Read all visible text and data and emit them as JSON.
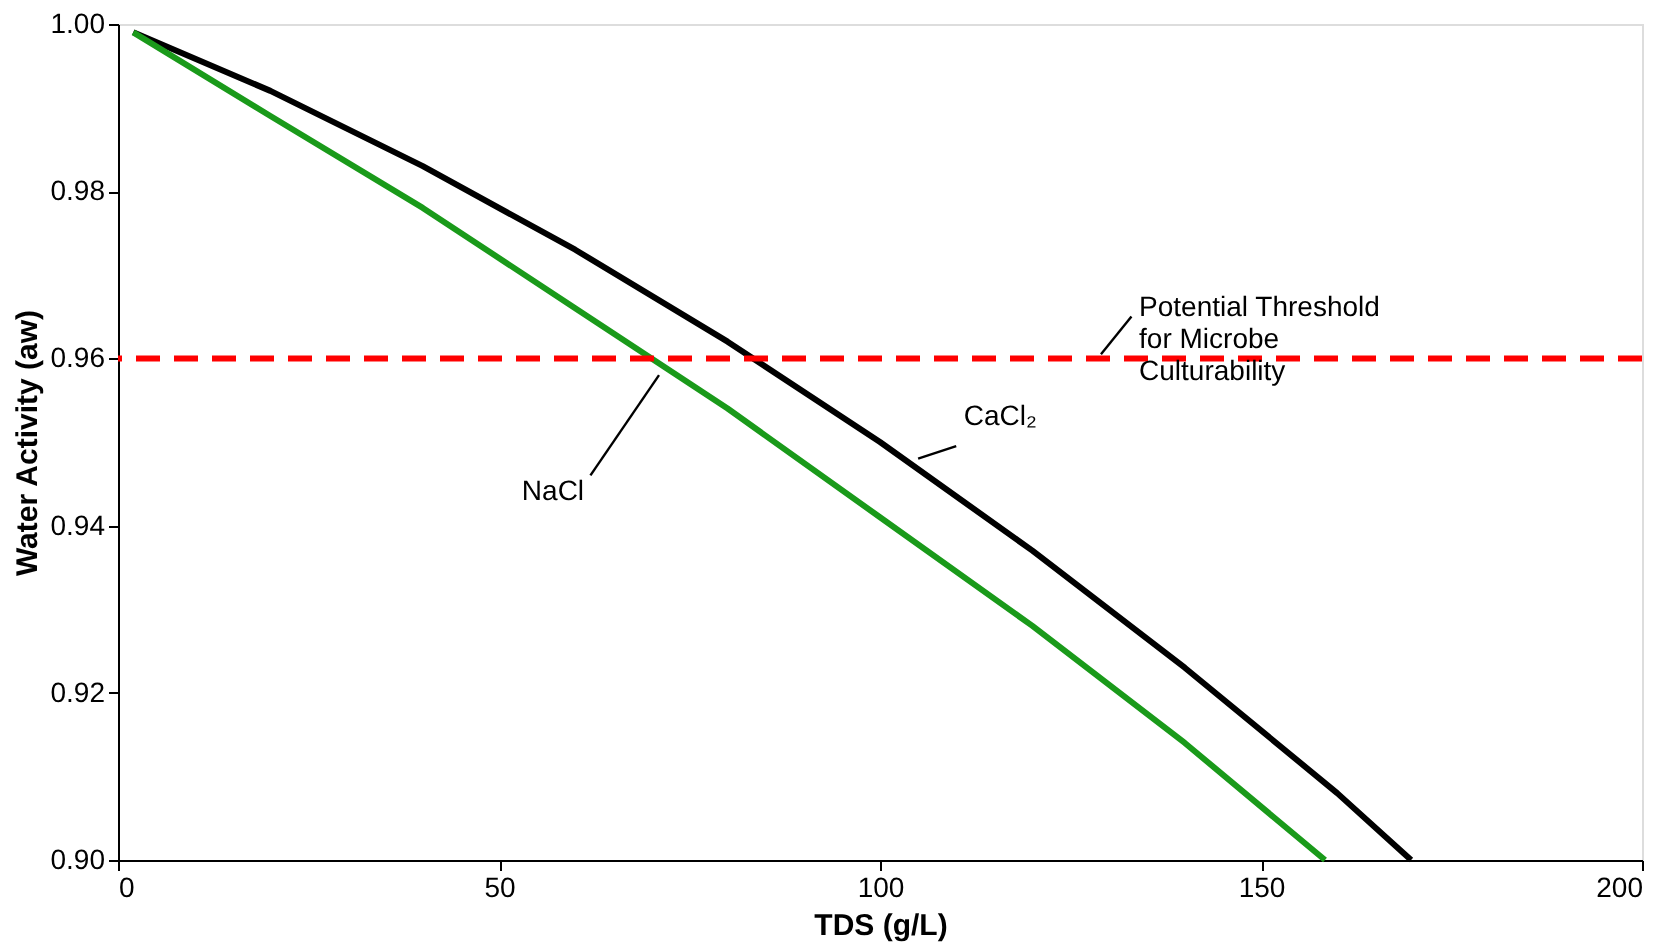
{
  "chart_data": {
    "type": "line",
    "xlabel": "TDS (g/L)",
    "ylabel": "Water Activity (aw)",
    "xlim": [
      0,
      200
    ],
    "xticks": [
      0,
      50,
      100,
      150,
      200
    ],
    "ylim": [
      0.9,
      1.0
    ],
    "yticks": [
      {
        "value": 0.9,
        "label": "0.90"
      },
      0.92,
      0.94,
      0.96,
      0.98,
      {
        "value": 1.0,
        "label": "1.00"
      }
    ],
    "grid": false,
    "marker": "none",
    "line_style": "solid",
    "series": [
      {
        "color": "#000000",
        "x": [
          2,
          20,
          40,
          60,
          80,
          100,
          120,
          140,
          160,
          169.7
        ],
        "values": [
          0.999,
          0.992,
          0.983,
          0.973,
          0.962,
          0.95,
          0.937,
          0.923,
          0.908,
          0.9
        ]
      },
      {
        "color": "#1a9a1a",
        "x": [
          2,
          20,
          40,
          60,
          80,
          100,
          120,
          140,
          158.4
        ],
        "values": [
          0.999,
          0.989,
          0.978,
          0.966,
          0.954,
          0.941,
          0.928,
          0.914,
          0.9
        ]
      }
    ],
    "ref_lines": [
      {
        "axis": "y",
        "value": 0.96,
        "color": "#ff0000",
        "line_style": "dashed"
      }
    ],
    "annotations": [
      {
        "text": "Potential Threshold\nfor Microbe\nCulturability",
        "x": 129,
        "y": 0.9605
      },
      {
        "text": "CaCl₂",
        "x": 105,
        "y": 0.948
      },
      {
        "text": "NaCl",
        "x": 71,
        "y": 0.958
      }
    ]
  }
}
